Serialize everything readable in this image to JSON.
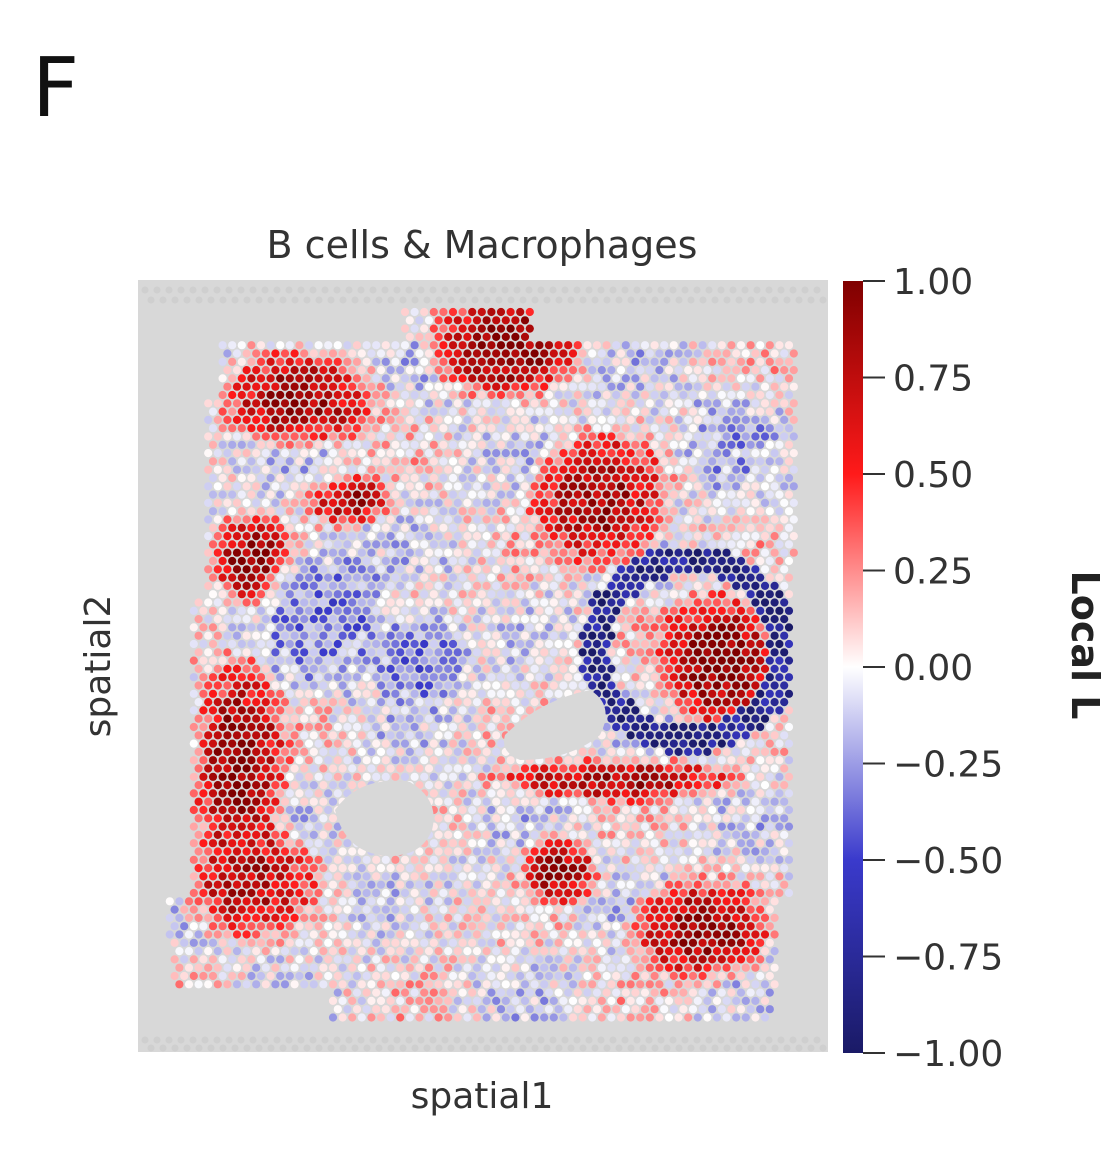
{
  "panel_label": "F",
  "chart_data": {
    "type": "scatter",
    "subtype": "spatial-spot-map",
    "title": "B cells & Macrophages",
    "xlabel": "spatial1",
    "ylabel": "spatial2",
    "colorbar": {
      "label": "Local L",
      "range": [
        -1.0,
        1.0
      ],
      "ticks": [
        1.0,
        0.75,
        0.5,
        0.25,
        0.0,
        -0.25,
        -0.5,
        -0.75,
        -1.0
      ],
      "tick_labels": [
        "1.00",
        "0.75",
        "0.50",
        "0.25",
        "0.00",
        "−0.25",
        "−0.50",
        "−0.75",
        "−1.00"
      ],
      "colormap": "seismic",
      "colors": {
        "min": "#1a1a66",
        "mid": "#ffffff",
        "max": "#7f0000"
      }
    },
    "background_color": "#d8d8d8",
    "grid": false,
    "regions": [
      {
        "region": "top-center",
        "level": 1.0
      },
      {
        "region": "upper-left",
        "level": 0.85
      },
      {
        "region": "left-edge",
        "level": 0.9
      },
      {
        "region": "right-middle",
        "level": 1.0
      },
      {
        "region": "right-middle-ring",
        "level": -0.7
      },
      {
        "region": "center-left",
        "level": -0.35
      },
      {
        "region": "bottom-right",
        "level": 0.9
      },
      {
        "region": "bottom-left",
        "level": 0.75
      },
      {
        "region": "center-diagonal",
        "level": 0.8
      }
    ]
  }
}
